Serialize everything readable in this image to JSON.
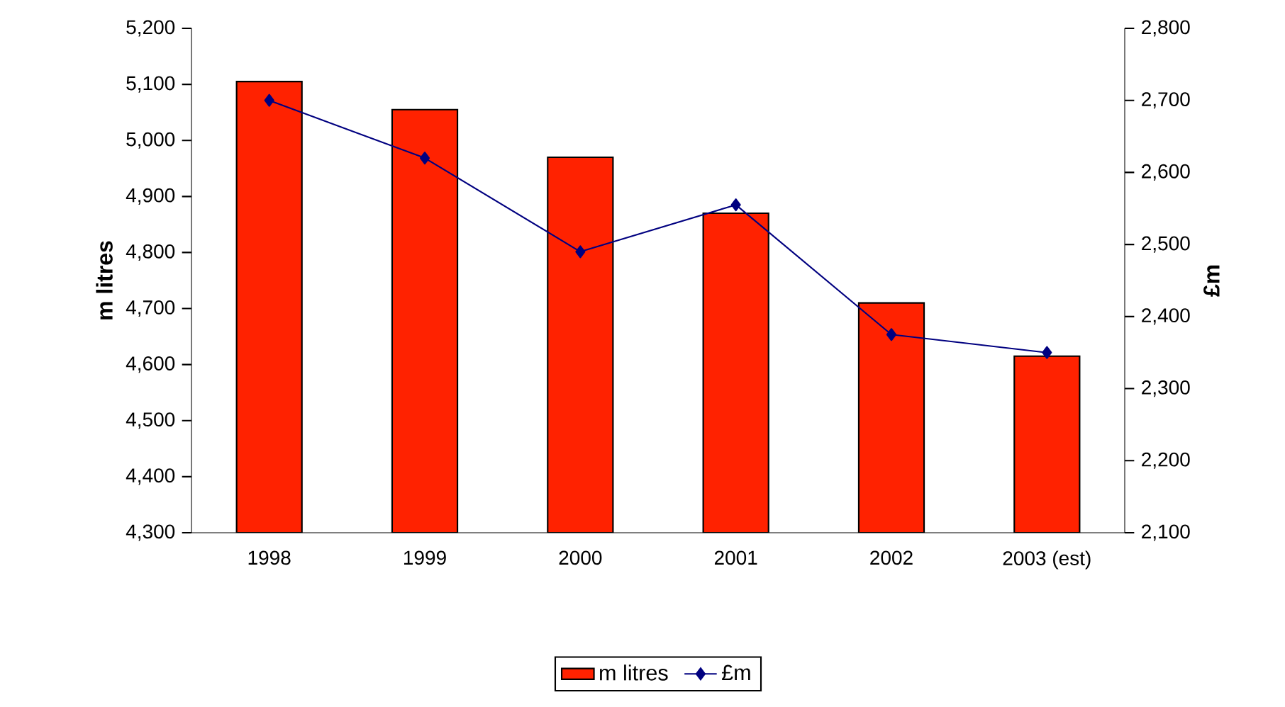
{
  "chart_data": {
    "type": "bar",
    "categories": [
      "1998",
      "1999",
      "2000",
      "2001",
      "2002",
      "2003 (est)"
    ],
    "series": [
      {
        "name": "m litres",
        "color": "#ff2200",
        "values": [
          5105,
          5055,
          4970,
          4870,
          4710,
          4615
        ]
      },
      {
        "name": "£m",
        "type": "line",
        "axis": "y2",
        "color": "#000080",
        "marker": "diamond",
        "values": [
          2700,
          2620,
          2490,
          2555,
          2375,
          2350
        ]
      }
    ],
    "ylabel": "m litres",
    "y2label": "£m",
    "ylim": [
      4300,
      5200
    ],
    "yticks": [
      {
        "value": 4300,
        "label": "4,300"
      },
      {
        "value": 4400,
        "label": "4,400"
      },
      {
        "value": 4500,
        "label": "4,500"
      },
      {
        "value": 4600,
        "label": "4,600"
      },
      {
        "value": 4700,
        "label": "4,700"
      },
      {
        "value": 4800,
        "label": "4,800"
      },
      {
        "value": 4900,
        "label": "4,900"
      },
      {
        "value": 5000,
        "label": "5,000"
      },
      {
        "value": 5100,
        "label": "5,100"
      },
      {
        "value": 5200,
        "label": "5,200"
      }
    ],
    "y2lim": [
      2100,
      2800
    ],
    "y2ticks": [
      {
        "value": 2100,
        "label": "2,100"
      },
      {
        "value": 2200,
        "label": "2,200"
      },
      {
        "value": 2300,
        "label": "2,300"
      },
      {
        "value": 2400,
        "label": "2,400"
      },
      {
        "value": 2500,
        "label": "2,500"
      },
      {
        "value": 2600,
        "label": "2,600"
      },
      {
        "value": 2700,
        "label": "2,700"
      },
      {
        "value": 2800,
        "label": "2,800"
      }
    ],
    "legend": "bottom"
  }
}
